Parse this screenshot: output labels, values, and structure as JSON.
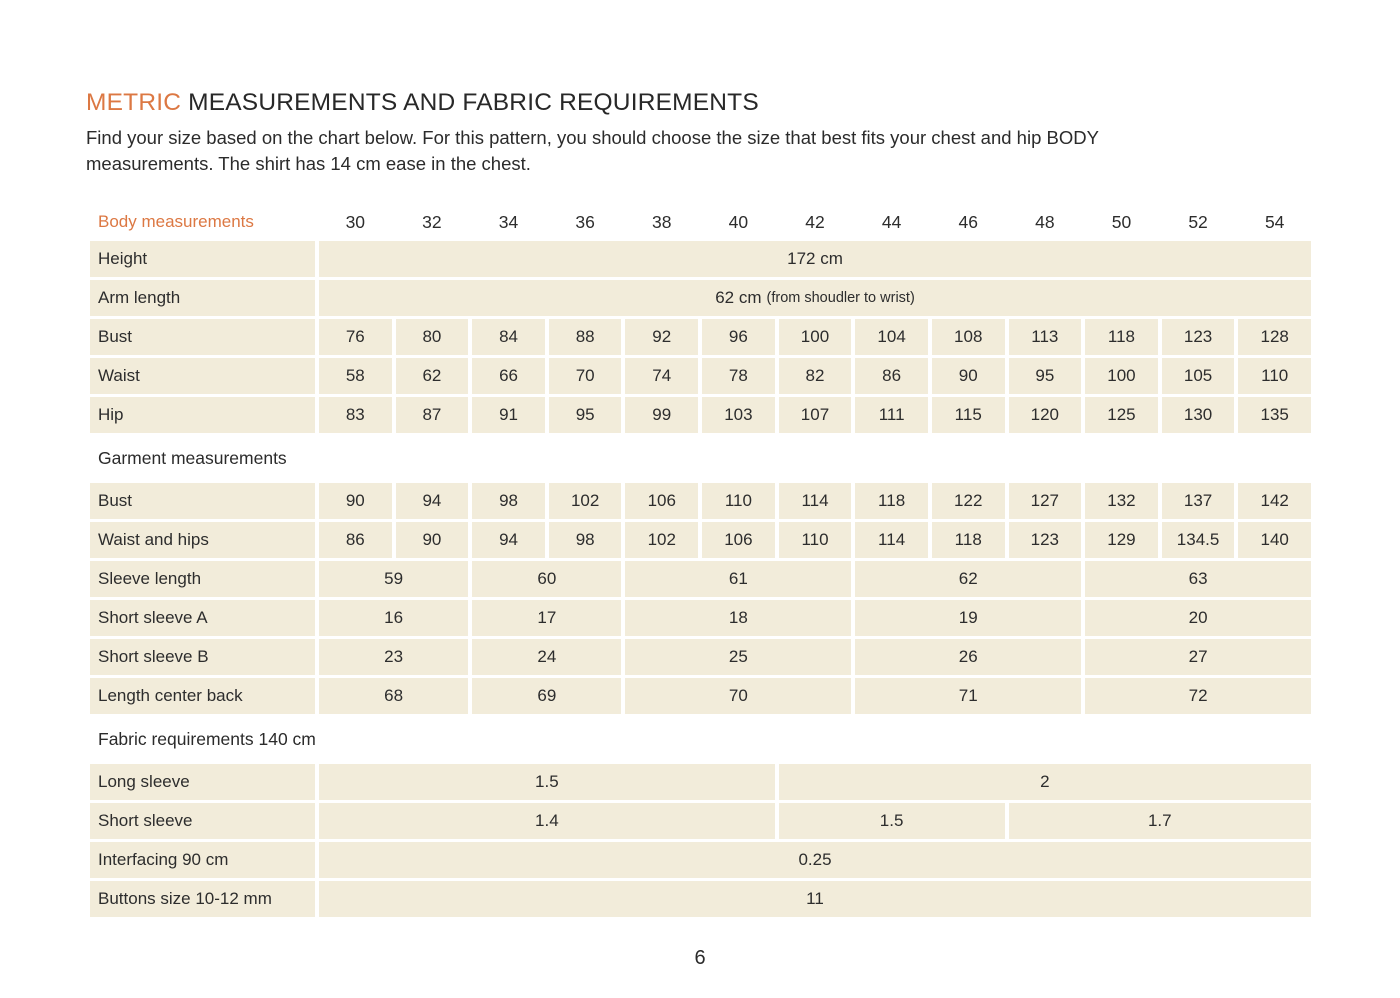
{
  "colors": {
    "accent_orange": "#dc7843",
    "cell_beige": "#f2ecda",
    "text_dark": "#2d2d2d"
  },
  "header": {
    "title_highlight": "METRIC",
    "title_rest": " MEASUREMENTS AND FABRIC REQUIREMENTS",
    "intro_line1": "Find your size based on the chart below. For this pattern, you should choose the size that best fits your chest and hip BODY",
    "intro_line2": "measurements. The shirt has 14 cm ease in the chest."
  },
  "table": {
    "header_label": "Body measurements",
    "sizes": [
      "30",
      "32",
      "34",
      "36",
      "38",
      "40",
      "42",
      "44",
      "46",
      "48",
      "50",
      "52",
      "54"
    ],
    "rows": [
      {
        "type": "data",
        "label": "Height",
        "cells": [
          {
            "text": "172 cm",
            "span": 13
          }
        ]
      },
      {
        "type": "data",
        "label": "Arm length",
        "cells": [
          {
            "text": "62 cm",
            "small": "(from shoudler to wrist)",
            "span": 13
          }
        ]
      },
      {
        "type": "data",
        "label": "Bust",
        "cells": [
          {
            "text": "76",
            "span": 1
          },
          {
            "text": "80",
            "span": 1
          },
          {
            "text": "84",
            "span": 1
          },
          {
            "text": "88",
            "span": 1
          },
          {
            "text": "92",
            "span": 1
          },
          {
            "text": "96",
            "span": 1
          },
          {
            "text": "100",
            "span": 1
          },
          {
            "text": "104",
            "span": 1
          },
          {
            "text": "108",
            "span": 1
          },
          {
            "text": "113",
            "span": 1
          },
          {
            "text": "118",
            "span": 1
          },
          {
            "text": "123",
            "span": 1
          },
          {
            "text": "128",
            "span": 1
          }
        ]
      },
      {
        "type": "data",
        "label": "Waist",
        "cells": [
          {
            "text": "58",
            "span": 1
          },
          {
            "text": "62",
            "span": 1
          },
          {
            "text": "66",
            "span": 1
          },
          {
            "text": "70",
            "span": 1
          },
          {
            "text": "74",
            "span": 1
          },
          {
            "text": "78",
            "span": 1
          },
          {
            "text": "82",
            "span": 1
          },
          {
            "text": "86",
            "span": 1
          },
          {
            "text": "90",
            "span": 1
          },
          {
            "text": "95",
            "span": 1
          },
          {
            "text": "100",
            "span": 1
          },
          {
            "text": "105",
            "span": 1
          },
          {
            "text": "110",
            "span": 1
          }
        ]
      },
      {
        "type": "data",
        "label": "Hip",
        "cells": [
          {
            "text": "83",
            "span": 1
          },
          {
            "text": "87",
            "span": 1
          },
          {
            "text": "91",
            "span": 1
          },
          {
            "text": "95",
            "span": 1
          },
          {
            "text": "99",
            "span": 1
          },
          {
            "text": "103",
            "span": 1
          },
          {
            "text": "107",
            "span": 1
          },
          {
            "text": "111",
            "span": 1
          },
          {
            "text": "115",
            "span": 1
          },
          {
            "text": "120",
            "span": 1
          },
          {
            "text": "125",
            "span": 1
          },
          {
            "text": "130",
            "span": 1
          },
          {
            "text": "135",
            "span": 1
          }
        ]
      },
      {
        "type": "section",
        "label": "Garment measurements"
      },
      {
        "type": "data",
        "label": "Bust",
        "cells": [
          {
            "text": "90",
            "span": 1
          },
          {
            "text": "94",
            "span": 1
          },
          {
            "text": "98",
            "span": 1
          },
          {
            "text": "102",
            "span": 1
          },
          {
            "text": "106",
            "span": 1
          },
          {
            "text": "110",
            "span": 1
          },
          {
            "text": "114",
            "span": 1
          },
          {
            "text": "118",
            "span": 1
          },
          {
            "text": "122",
            "span": 1
          },
          {
            "text": "127",
            "span": 1
          },
          {
            "text": "132",
            "span": 1
          },
          {
            "text": "137",
            "span": 1
          },
          {
            "text": "142",
            "span": 1
          }
        ]
      },
      {
        "type": "data",
        "label": "Waist and hips",
        "cells": [
          {
            "text": "86",
            "span": 1
          },
          {
            "text": "90",
            "span": 1
          },
          {
            "text": "94",
            "span": 1
          },
          {
            "text": "98",
            "span": 1
          },
          {
            "text": "102",
            "span": 1
          },
          {
            "text": "106",
            "span": 1
          },
          {
            "text": "110",
            "span": 1
          },
          {
            "text": "114",
            "span": 1
          },
          {
            "text": "118",
            "span": 1
          },
          {
            "text": "123",
            "span": 1
          },
          {
            "text": "129",
            "span": 1
          },
          {
            "text": "134.5",
            "span": 1
          },
          {
            "text": "140",
            "span": 1
          }
        ]
      },
      {
        "type": "data",
        "label": "Sleeve length",
        "cells": [
          {
            "text": "59",
            "span": 2
          },
          {
            "text": "60",
            "span": 2
          },
          {
            "text": "61",
            "span": 3
          },
          {
            "text": "62",
            "span": 3
          },
          {
            "text": "63",
            "span": 3
          }
        ]
      },
      {
        "type": "data",
        "label": "Short sleeve A",
        "cells": [
          {
            "text": "16",
            "span": 2
          },
          {
            "text": "17",
            "span": 2
          },
          {
            "text": "18",
            "span": 3
          },
          {
            "text": "19",
            "span": 3
          },
          {
            "text": "20",
            "span": 3
          }
        ]
      },
      {
        "type": "data",
        "label": "Short sleeve B",
        "cells": [
          {
            "text": "23",
            "span": 2
          },
          {
            "text": "24",
            "span": 2
          },
          {
            "text": "25",
            "span": 3
          },
          {
            "text": "26",
            "span": 3
          },
          {
            "text": "27",
            "span": 3
          }
        ]
      },
      {
        "type": "data",
        "label": "Length center back",
        "cells": [
          {
            "text": "68",
            "span": 2
          },
          {
            "text": "69",
            "span": 2
          },
          {
            "text": "70",
            "span": 3
          },
          {
            "text": "71",
            "span": 3
          },
          {
            "text": "72",
            "span": 3
          }
        ]
      },
      {
        "type": "section",
        "label": "Fabric requirements 140 cm"
      },
      {
        "type": "data",
        "label": "Long sleeve",
        "cells": [
          {
            "text": "1.5",
            "span": 6
          },
          {
            "text": "2",
            "span": 7
          }
        ]
      },
      {
        "type": "data",
        "label": "Short sleeve",
        "cells": [
          {
            "text": "1.4",
            "span": 6
          },
          {
            "text": "1.5",
            "span": 3
          },
          {
            "text": "1.7",
            "span": 4
          }
        ]
      },
      {
        "type": "data",
        "label": "Interfacing 90 cm",
        "cells": [
          {
            "text": "0.25",
            "span": 13
          }
        ]
      },
      {
        "type": "data",
        "label": "Buttons size 10-12 mm",
        "cells": [
          {
            "text": "11",
            "span": 13
          }
        ]
      }
    ]
  },
  "footer": {
    "page_number": "6"
  }
}
